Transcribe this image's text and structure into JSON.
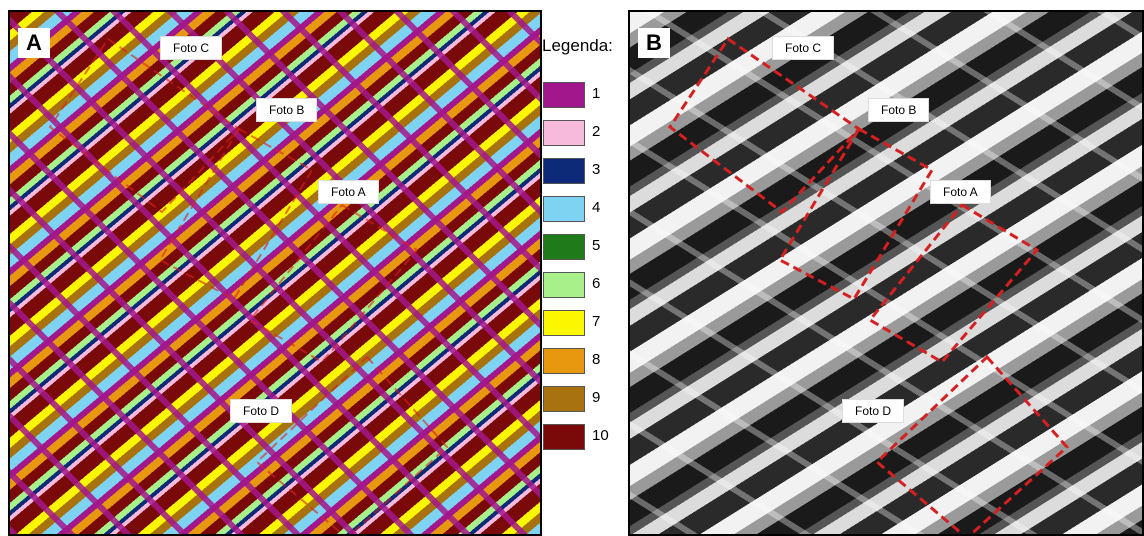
{
  "panels": [
    {
      "letter": "A",
      "photos": [
        "Foto C",
        "Foto B",
        "Foto A",
        "Foto D"
      ]
    },
    {
      "letter": "B",
      "photos": [
        "Foto C",
        "Foto B",
        "Foto A",
        "Foto D"
      ]
    }
  ],
  "legend": {
    "title": "Legenda:",
    "items": [
      {
        "label": "1",
        "color": "#a3178c"
      },
      {
        "label": "2",
        "color": "#f7b9dc"
      },
      {
        "label": "3",
        "color": "#0c2a78"
      },
      {
        "label": "4",
        "color": "#7fd3f2"
      },
      {
        "label": "5",
        "color": "#1f7a1a"
      },
      {
        "label": "6",
        "color": "#a8f08a"
      },
      {
        "label": "7",
        "color": "#fbf700"
      },
      {
        "label": "8",
        "color": "#e8980e"
      },
      {
        "label": "9",
        "color": "#a8720e"
      },
      {
        "label": "10",
        "color": "#7a0a0a"
      }
    ]
  }
}
